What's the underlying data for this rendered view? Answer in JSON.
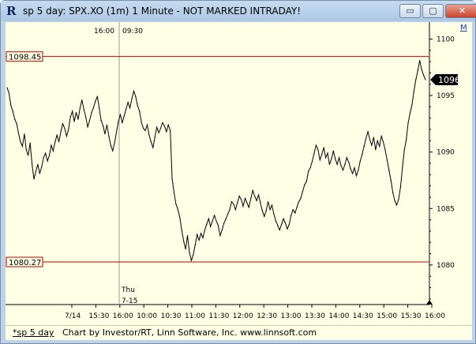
{
  "window": {
    "title": "sp 5 day: SPX.XO (1m) 1 Minute - NOT MARKED INTRADAY!",
    "app_icon": "R",
    "buttons": {
      "minimize": "▭",
      "maximize": "▢",
      "close": "✕"
    }
  },
  "chart_header": {
    "left_time": "16:00",
    "right_time": "09:30"
  },
  "top_right_button": "M",
  "session_divider_label": {
    "day": "Thu",
    "date": "7-15"
  },
  "reference_lines": [
    {
      "label": "1098.45",
      "value": 1098.45,
      "color": "#cc0000"
    },
    {
      "label": "1080.27",
      "value": 1080.27,
      "color": "#cc0000"
    }
  ],
  "last_price": {
    "label": "1096",
    "value": 1096.4
  },
  "footer": {
    "tab": "*sp 5 day",
    "credit": "Chart by Investor/RT, Linn Software, Inc. www.linnsoft.com"
  },
  "chart_data": {
    "type": "line",
    "title": "sp 5 day: SPX.XO (1m) 1 Minute - NOT MARKED INTRADAY!",
    "y_ticks": [
      "1100",
      "1095",
      "1090",
      "1085",
      "1080"
    ],
    "ylim": [
      1076.5,
      1101.5
    ],
    "x_ticks": [
      "7/14",
      "15:30",
      "16:00",
      "10:00",
      "10:30",
      "11:00",
      "11:30",
      "12:00",
      "12:30",
      "13:00",
      "13:30",
      "14:00",
      "14:30",
      "15:00",
      "15:30",
      "16:00"
    ],
    "grid": false,
    "series": [
      {
        "values": [
          1095.7,
          1095.2,
          1094.1,
          1093.6,
          1092.9,
          1092.5,
          1091.6,
          1090.9,
          1090.5,
          1091.6,
          1090.2,
          1089.7,
          1090.8,
          1088.9,
          1087.6,
          1088.3,
          1088.9,
          1088.1,
          1088.7,
          1089.5,
          1089.9,
          1089.2,
          1089.7,
          1090.6,
          1090.1,
          1090.9,
          1091.5,
          1090.9,
          1091.8,
          1092.5,
          1092.1,
          1091.4,
          1092.0,
          1093.1,
          1093.6,
          1092.7,
          1093.5,
          1092.9,
          1093.9,
          1094.6,
          1093.8,
          1093.1,
          1092.2,
          1092.8,
          1093.5,
          1093.9,
          1094.5,
          1094.9,
          1093.9,
          1092.8,
          1092.3,
          1091.6,
          1092.4,
          1091.4,
          1090.6,
          1090.1,
          1090.8,
          1091.8,
          1092.7,
          1093.3,
          1092.6,
          1093.2,
          1093.8,
          1094.4,
          1093.9,
          1094.7,
          1095.4,
          1094.9,
          1094.1,
          1093.6,
          1092.6,
          1092.1,
          1091.9,
          1092.4,
          1091.5,
          1090.9,
          1090.4,
          1091.3,
          1092.2,
          1091.7,
          1092.1,
          1092.6,
          1092.3,
          1091.8,
          1092.4,
          1091.9,
          1087.6,
          1086.4,
          1085.4,
          1084.9,
          1084.2,
          1083.1,
          1082.1,
          1081.4,
          1082.6,
          1081.1,
          1080.4,
          1080.9,
          1081.8,
          1082.7,
          1082.2,
          1082.8,
          1082.4,
          1083.1,
          1083.6,
          1084.1,
          1083.4,
          1083.9,
          1084.4,
          1083.9,
          1083.5,
          1082.6,
          1083.1,
          1083.7,
          1084.1,
          1084.5,
          1084.9,
          1085.6,
          1085.4,
          1084.9,
          1085.5,
          1086.1,
          1085.8,
          1085.2,
          1085.9,
          1085.5,
          1085.1,
          1085.9,
          1086.6,
          1086.1,
          1085.7,
          1086.2,
          1085.5,
          1084.8,
          1084.3,
          1084.8,
          1085.6,
          1084.9,
          1085.3,
          1084.5,
          1083.9,
          1083.5,
          1083.1,
          1083.6,
          1084.1,
          1083.7,
          1083.2,
          1083.6,
          1084.4,
          1084.9,
          1084.6,
          1085.1,
          1085.6,
          1085.9,
          1086.5,
          1087.1,
          1087.4,
          1088.3,
          1088.6,
          1089.2,
          1089.9,
          1090.6,
          1090.2,
          1089.3,
          1089.8,
          1090.4,
          1089.5,
          1089.9,
          1088.9,
          1089.4,
          1090.1,
          1089.4,
          1088.9,
          1089.5,
          1088.8,
          1088.4,
          1088.9,
          1089.5,
          1089.1,
          1088.5,
          1088.1,
          1088.6,
          1087.9,
          1088.4,
          1089.2,
          1089.8,
          1090.5,
          1091.2,
          1091.8,
          1091.1,
          1090.6,
          1091.3,
          1090.2,
          1091.0,
          1090.5,
          1091.4,
          1090.9,
          1090.2,
          1089.3,
          1088.4,
          1087.5,
          1086.4,
          1085.7,
          1085.3,
          1085.8,
          1086.9,
          1088.6,
          1090.2,
          1091.1,
          1092.6,
          1093.5,
          1094.2,
          1095.4,
          1096.4,
          1097.2,
          1098.1,
          1097.3,
          1096.8,
          1096.4
        ]
      }
    ]
  }
}
